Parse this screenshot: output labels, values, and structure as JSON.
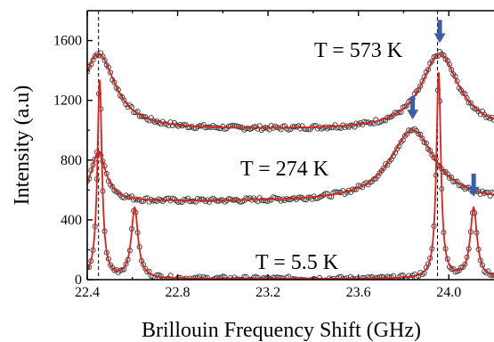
{
  "chart_data": {
    "type": "scatter",
    "title": "",
    "xlabel": "Brillouin Frequency Shift (GHz)",
    "ylabel": "Intensity (a.u)",
    "xlim": [
      22.4,
      24.2
    ],
    "ylim": [
      0,
      1800
    ],
    "xticks": [
      "22.4",
      "22.8",
      "23.2",
      "23.6",
      "24.0"
    ],
    "yticks": [
      "0",
      "400",
      "800",
      "1200",
      "1600"
    ],
    "grid": false,
    "legend": "none",
    "reference_lines_x": [
      22.45,
      23.95
    ],
    "colors": {
      "fit": "#e0201b",
      "points": "#3a3a3a",
      "arrow": "#3b5eab",
      "axis": "#000000"
    },
    "series": [
      {
        "name": "T = 573 K",
        "baseline": 1000,
        "peaks": [
          {
            "x": 22.45,
            "amplitude": 510,
            "width": 0.09
          },
          {
            "x": 23.96,
            "amplitude": 510,
            "width": 0.1
          }
        ],
        "arrow_at_x": 23.96
      },
      {
        "name": "T = 274 K",
        "baseline": 520,
        "peaks": [
          {
            "x": 22.45,
            "amplitude": 330,
            "width": 0.04
          },
          {
            "x": 23.84,
            "amplitude": 480,
            "width": 0.12
          }
        ],
        "arrow_at_x": 23.84
      },
      {
        "name": "T = 5.5 K",
        "baseline": 5,
        "peaks": [
          {
            "x": 22.455,
            "amplitude": 1330,
            "width": 0.012
          },
          {
            "x": 22.61,
            "amplitude": 470,
            "width": 0.018
          },
          {
            "x": 23.955,
            "amplitude": 1380,
            "width": 0.012
          },
          {
            "x": 24.11,
            "amplitude": 470,
            "width": 0.018
          }
        ],
        "arrow_at_x": 24.11
      }
    ]
  }
}
